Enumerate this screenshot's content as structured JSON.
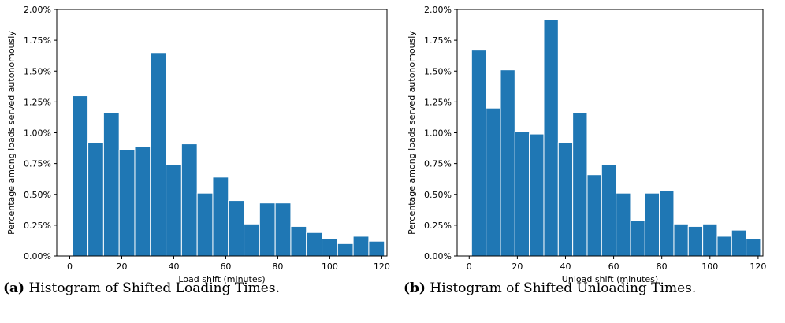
{
  "chart_data": [
    {
      "type": "bar",
      "panel_label": "(a)",
      "caption": "Histogram of Shifted Loading Times.",
      "xlabel": "Load shift (minutes)",
      "ylabel": "Percentage among loads served autonomously",
      "xlim": [
        -5,
        122
      ],
      "ylim": [
        0,
        2.0
      ],
      "xticks": [
        "0",
        "20",
        "40",
        "60",
        "80",
        "100",
        "120"
      ],
      "yticks": [
        "0.00%",
        "0.25%",
        "0.50%",
        "0.75%",
        "1.00%",
        "1.25%",
        "1.50%",
        "1.75%",
        "2.00%"
      ],
      "bin_width": 6,
      "bin_start": 1,
      "values": [
        1.3,
        0.92,
        1.16,
        0.86,
        0.89,
        1.65,
        0.74,
        0.91,
        0.51,
        0.64,
        0.45,
        0.26,
        0.43,
        0.43,
        0.24,
        0.19,
        0.14,
        0.1,
        0.16,
        0.12
      ],
      "color": "#1f77b4"
    },
    {
      "type": "bar",
      "panel_label": "(b)",
      "caption": "Histogram of Shifted Unloading Times.",
      "xlabel": "Unload shift (minutes)",
      "ylabel": "Percentage among loads served autonomously",
      "xlim": [
        -5,
        122
      ],
      "ylim": [
        0,
        2.0
      ],
      "xticks": [
        "0",
        "20",
        "40",
        "60",
        "80",
        "100",
        "120"
      ],
      "yticks": [
        "0.00%",
        "0.25%",
        "0.50%",
        "0.75%",
        "1.00%",
        "1.25%",
        "1.50%",
        "1.75%",
        "2.00%"
      ],
      "bin_width": 6,
      "bin_start": 1,
      "values": [
        1.67,
        1.2,
        1.51,
        1.01,
        0.99,
        1.92,
        0.92,
        1.16,
        0.66,
        0.74,
        0.51,
        0.29,
        0.51,
        0.53,
        0.26,
        0.24,
        0.26,
        0.16,
        0.21,
        0.14
      ],
      "color": "#1f77b4"
    }
  ]
}
